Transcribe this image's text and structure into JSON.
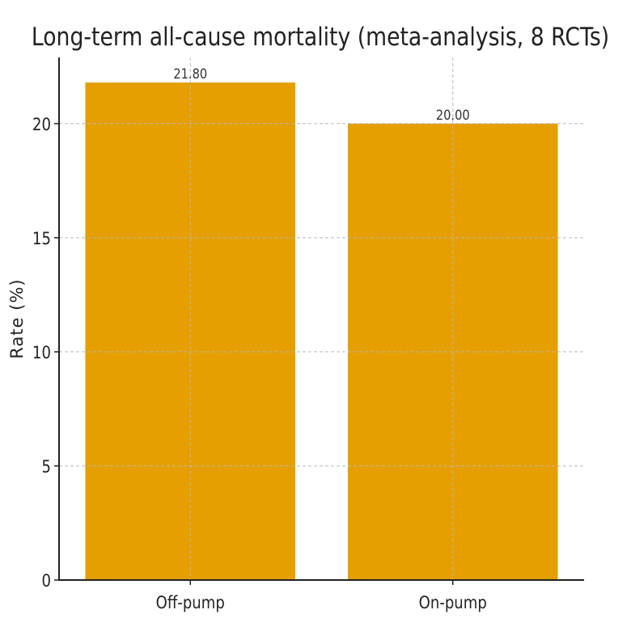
{
  "chart_data": {
    "type": "bar",
    "title": "Long-term all-cause mortality (meta-analysis, 8 RCTs)",
    "xlabel": "",
    "ylabel": "Rate (%)",
    "categories": [
      "Off-pump",
      "On-pump"
    ],
    "values": [
      21.8,
      20.0
    ],
    "value_labels": [
      "21.80",
      "20.00"
    ],
    "yticks": [
      0,
      5,
      10,
      15,
      20
    ],
    "ylim": [
      0,
      22.9
    ],
    "grid": true,
    "bar_color": "#E69F00"
  }
}
